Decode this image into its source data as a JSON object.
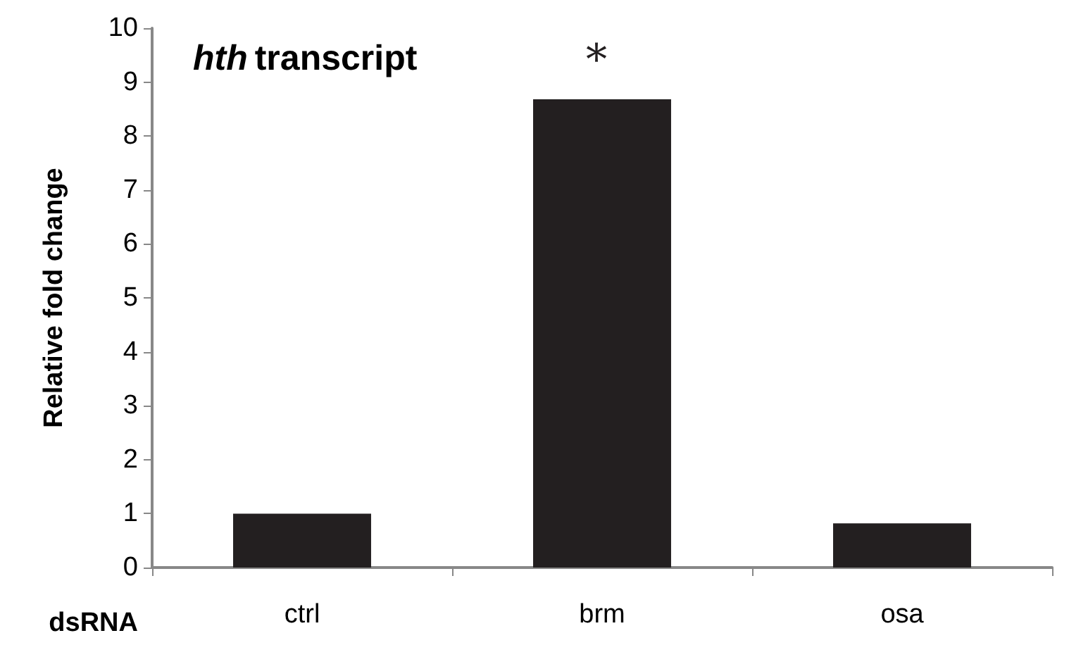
{
  "chart_data": {
    "type": "bar",
    "title": "hth transcript",
    "xlabel": "dsRNA",
    "ylabel": "Relative fold change",
    "categories": [
      "ctrl",
      "brm",
      "osa"
    ],
    "values": [
      1.0,
      8.68,
      0.82
    ],
    "color": "#231f20",
    "ylim": [
      0,
      10
    ],
    "yticks": [
      0,
      1,
      2,
      3,
      4,
      5,
      6,
      7,
      8,
      9,
      10
    ],
    "annotations": [
      "*"
    ],
    "grid": false
  }
}
